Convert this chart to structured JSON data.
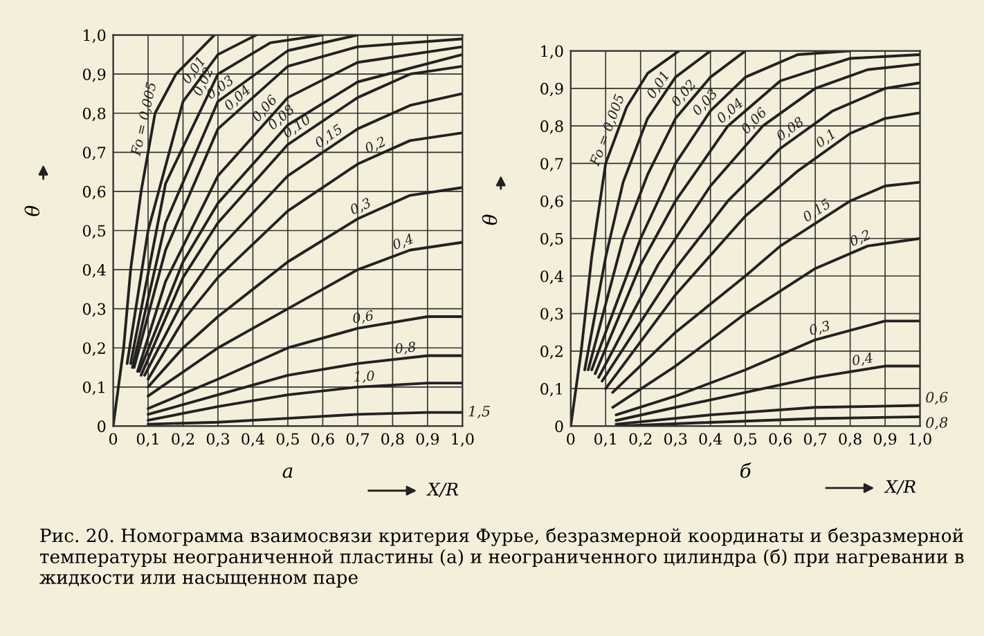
{
  "chart_data": [
    {
      "type": "line",
      "xlabel": "а",
      "ylabel": "θ",
      "xlim": [
        0,
        1.0
      ],
      "ylim": [
        0,
        1.0
      ],
      "grid": true,
      "legend": false,
      "xticks": [
        0,
        {
          "value": 0.1,
          "label": "0,1"
        },
        {
          "value": 0.2,
          "label": "0,2"
        },
        {
          "value": 0.3,
          "label": "0,3"
        },
        {
          "value": 0.4,
          "label": "0,4"
        },
        {
          "value": 0.5,
          "label": "0,5"
        },
        {
          "value": 0.6,
          "label": "0,6"
        },
        {
          "value": 0.7,
          "label": "0,7"
        },
        {
          "value": 0.8,
          "label": "0,8"
        },
        {
          "value": 0.9,
          "label": "0,9"
        },
        {
          "value": 1.0,
          "label": "1,0"
        }
      ],
      "yticks": [
        0,
        {
          "value": 0.1,
          "label": "0,1"
        },
        {
          "value": 0.2,
          "label": "0,2"
        },
        {
          "value": 0.3,
          "label": "0,3"
        },
        {
          "value": 0.4,
          "label": "0,4"
        },
        {
          "value": 0.5,
          "label": "0,5"
        },
        {
          "value": 0.6,
          "label": "0,6"
        },
        {
          "value": 0.7,
          "label": "0,7"
        },
        {
          "value": 0.8,
          "label": "0,8"
        },
        {
          "value": 0.9,
          "label": "0,9"
        },
        {
          "value": 1.0,
          "label": "1,0"
        }
      ],
      "annotations": [
        "X/R",
        "Рис. 20. Номограмма взаимосвязи критерия Фурье, безразмерной координаты и безразмерной температуры неограниченной пластины (а) и неограниченного цилиндра (б) при нагревании в жидкости или насыщенном паре"
      ],
      "series": [
        {
          "name": "Fo = 0,005",
          "color": "#222222",
          "x": [
            0,
            0.03,
            0.05,
            0.08,
            0.12,
            0.18,
            0.29
          ],
          "values": [
            0,
            0.2,
            0.4,
            0.6,
            0.8,
            0.9,
            1.0
          ]
        },
        {
          "name": "0,01",
          "color": "#222222",
          "x": [
            0.04,
            0.1,
            0.2,
            0.3,
            0.41
          ],
          "values": [
            0.16,
            0.5,
            0.83,
            0.95,
            1.0
          ]
        },
        {
          "name": "0,02",
          "color": "#222222",
          "x": [
            0.05,
            0.15,
            0.3,
            0.45,
            0.6
          ],
          "values": [
            0.16,
            0.62,
            0.9,
            0.98,
            1.0
          ]
        },
        {
          "name": "0,03",
          "color": "#222222",
          "x": [
            0.055,
            0.15,
            0.3,
            0.5,
            0.7
          ],
          "values": [
            0.15,
            0.52,
            0.83,
            0.96,
            1.0
          ]
        },
        {
          "name": "0,04",
          "color": "#222222",
          "x": [
            0.06,
            0.15,
            0.3,
            0.5,
            0.7,
            1.0
          ],
          "values": [
            0.15,
            0.45,
            0.76,
            0.92,
            0.97,
            0.99
          ]
        },
        {
          "name": "0,06",
          "color": "#222222",
          "x": [
            0.07,
            0.15,
            0.3,
            0.5,
            0.7,
            1.0
          ],
          "values": [
            0.14,
            0.37,
            0.64,
            0.84,
            0.93,
            0.97
          ]
        },
        {
          "name": "0,08",
          "color": "#222222",
          "x": [
            0.075,
            0.2,
            0.3,
            0.5,
            0.7,
            1.0
          ],
          "values": [
            0.14,
            0.42,
            0.57,
            0.77,
            0.88,
            0.95
          ]
        },
        {
          "name": "0,10",
          "color": "#222222",
          "x": [
            0.08,
            0.2,
            0.3,
            0.5,
            0.7,
            0.85,
            1.0
          ],
          "values": [
            0.13,
            0.38,
            0.52,
            0.72,
            0.84,
            0.9,
            0.92
          ]
        },
        {
          "name": "0,15",
          "color": "#222222",
          "x": [
            0.09,
            0.2,
            0.3,
            0.5,
            0.7,
            0.85,
            1.0
          ],
          "values": [
            0.13,
            0.32,
            0.45,
            0.64,
            0.76,
            0.82,
            0.85
          ]
        },
        {
          "name": "0,2",
          "color": "#222222",
          "x": [
            0.1,
            0.2,
            0.3,
            0.5,
            0.7,
            0.85,
            1.0
          ],
          "values": [
            0.12,
            0.27,
            0.38,
            0.55,
            0.67,
            0.73,
            0.75
          ]
        },
        {
          "name": "0,3",
          "color": "#222222",
          "x": [
            0.1,
            0.2,
            0.3,
            0.4,
            0.5,
            0.7,
            0.85,
            1.0
          ],
          "values": [
            0.1,
            0.2,
            0.28,
            0.35,
            0.42,
            0.53,
            0.59,
            0.61
          ]
        },
        {
          "name": "0,4",
          "color": "#222222",
          "x": [
            0.1,
            0.3,
            0.5,
            0.7,
            0.85,
            1.0
          ],
          "values": [
            0.077,
            0.2,
            0.3,
            0.4,
            0.45,
            0.47
          ]
        },
        {
          "name": "0,6",
          "color": "#222222",
          "x": [
            0.1,
            0.3,
            0.5,
            0.7,
            0.9,
            1.0
          ],
          "values": [
            0.045,
            0.12,
            0.2,
            0.25,
            0.28,
            0.28
          ]
        },
        {
          "name": "0,8",
          "color": "#222222",
          "x": [
            0.1,
            0.3,
            0.5,
            0.7,
            0.9,
            1.0
          ],
          "values": [
            0.03,
            0.08,
            0.13,
            0.16,
            0.18,
            0.18
          ]
        },
        {
          "name": "1,0",
          "color": "#222222",
          "x": [
            0.1,
            0.3,
            0.5,
            0.7,
            0.9,
            1.0
          ],
          "values": [
            0.015,
            0.05,
            0.08,
            0.1,
            0.11,
            0.11
          ]
        },
        {
          "name": "1,5",
          "color": "#222222",
          "x": [
            0.1,
            0.3,
            0.5,
            0.7,
            0.9,
            1.0
          ],
          "values": [
            0.005,
            0.01,
            0.02,
            0.03,
            0.035,
            0.035
          ]
        }
      ]
    },
    {
      "type": "line",
      "xlabel": "б",
      "ylabel": "θ",
      "xlim": [
        0,
        1.0
      ],
      "ylim": [
        0,
        1.0
      ],
      "grid": true,
      "legend": false,
      "xticks": [
        0,
        {
          "value": 0.1,
          "label": "0,1"
        },
        {
          "value": 0.2,
          "label": "0,2"
        },
        {
          "value": 0.3,
          "label": "0,3"
        },
        {
          "value": 0.4,
          "label": "0,4"
        },
        {
          "value": 0.5,
          "label": "0,5"
        },
        {
          "value": 0.6,
          "label": "0,6"
        },
        {
          "value": 0.7,
          "label": "0,7"
        },
        {
          "value": 0.8,
          "label": "0,8"
        },
        {
          "value": 0.9,
          "label": "0,9"
        },
        {
          "value": 1.0,
          "label": "1,0"
        }
      ],
      "yticks": [
        0,
        {
          "value": 0.1,
          "label": "0,1"
        },
        {
          "value": 0.2,
          "label": "0,2"
        },
        {
          "value": 0.3,
          "label": "0,3"
        },
        {
          "value": 0.4,
          "label": "0,4"
        },
        {
          "value": 0.5,
          "label": "0,5"
        },
        {
          "value": 0.6,
          "label": "0,6"
        },
        {
          "value": 0.7,
          "label": "0,7"
        },
        {
          "value": 0.8,
          "label": "0,8"
        },
        {
          "value": 0.9,
          "label": "0,9"
        },
        {
          "value": 1.0,
          "label": "1,0"
        }
      ],
      "annotations": [
        "X/R"
      ],
      "series": [
        {
          "name": "Fo = 0,005",
          "color": "#222222",
          "x": [
            0,
            0.03,
            0.06,
            0.1,
            0.16,
            0.22,
            0.31
          ],
          "values": [
            0,
            0.2,
            0.45,
            0.7,
            0.85,
            0.94,
            1.0
          ]
        },
        {
          "name": "0,01",
          "color": "#222222",
          "x": [
            0.04,
            0.1,
            0.15,
            0.22,
            0.3,
            0.4
          ],
          "values": [
            0.15,
            0.45,
            0.65,
            0.82,
            0.93,
            1.0
          ]
        },
        {
          "name": "0,02",
          "color": "#222222",
          "x": [
            0.05,
            0.15,
            0.22,
            0.3,
            0.4,
            0.5
          ],
          "values": [
            0.15,
            0.5,
            0.67,
            0.82,
            0.93,
            1.0
          ]
        },
        {
          "name": "0,03",
          "color": "#222222",
          "x": [
            0.06,
            0.2,
            0.3,
            0.4,
            0.5,
            0.65,
            0.8
          ],
          "values": [
            0.15,
            0.5,
            0.7,
            0.84,
            0.93,
            0.99,
            1.0
          ]
        },
        {
          "name": "0,04",
          "color": "#222222",
          "x": [
            0.07,
            0.2,
            0.3,
            0.45,
            0.6,
            0.8,
            1.0
          ],
          "values": [
            0.14,
            0.43,
            0.6,
            0.8,
            0.92,
            0.98,
            0.99
          ]
        },
        {
          "name": "0,06",
          "color": "#222222",
          "x": [
            0.08,
            0.25,
            0.4,
            0.55,
            0.7,
            0.85,
            1.0
          ],
          "values": [
            0.13,
            0.43,
            0.64,
            0.8,
            0.9,
            0.95,
            0.965
          ]
        },
        {
          "name": "0,08",
          "color": "#222222",
          "x": [
            0.09,
            0.3,
            0.45,
            0.6,
            0.75,
            0.9,
            1.0
          ],
          "values": [
            0.12,
            0.42,
            0.6,
            0.74,
            0.84,
            0.9,
            0.915
          ]
        },
        {
          "name": "0,1",
          "color": "#222222",
          "x": [
            0.1,
            0.3,
            0.5,
            0.65,
            0.8,
            0.9,
            1.0
          ],
          "values": [
            0.1,
            0.35,
            0.56,
            0.68,
            0.78,
            0.82,
            0.835
          ]
        },
        {
          "name": "0,15",
          "color": "#222222",
          "x": [
            0.12,
            0.3,
            0.5,
            0.6,
            0.8,
            0.9,
            1.0
          ],
          "values": [
            0.09,
            0.25,
            0.4,
            0.48,
            0.6,
            0.64,
            0.65
          ]
        },
        {
          "name": "0,2",
          "color": "#222222",
          "x": [
            0.12,
            0.3,
            0.5,
            0.7,
            0.85,
            1.0
          ],
          "values": [
            0.05,
            0.16,
            0.3,
            0.42,
            0.48,
            0.5
          ]
        },
        {
          "name": "0,3",
          "color": "#222222",
          "x": [
            0.13,
            0.3,
            0.5,
            0.7,
            0.9,
            1.0
          ],
          "values": [
            0.03,
            0.08,
            0.15,
            0.23,
            0.28,
            0.28
          ]
        },
        {
          "name": "0,4",
          "color": "#222222",
          "x": [
            0.13,
            0.3,
            0.5,
            0.7,
            0.9,
            1.0
          ],
          "values": [
            0.015,
            0.05,
            0.09,
            0.13,
            0.16,
            0.16
          ]
        },
        {
          "name": "0,6",
          "color": "#222222",
          "x": [
            0.13,
            0.4,
            0.7,
            1.0
          ],
          "values": [
            0.005,
            0.03,
            0.05,
            0.055
          ]
        },
        {
          "name": "0,8",
          "color": "#222222",
          "x": [
            0.13,
            0.4,
            0.7,
            1.0
          ],
          "values": [
            0.0,
            0.01,
            0.02,
            0.025
          ]
        }
      ]
    }
  ]
}
